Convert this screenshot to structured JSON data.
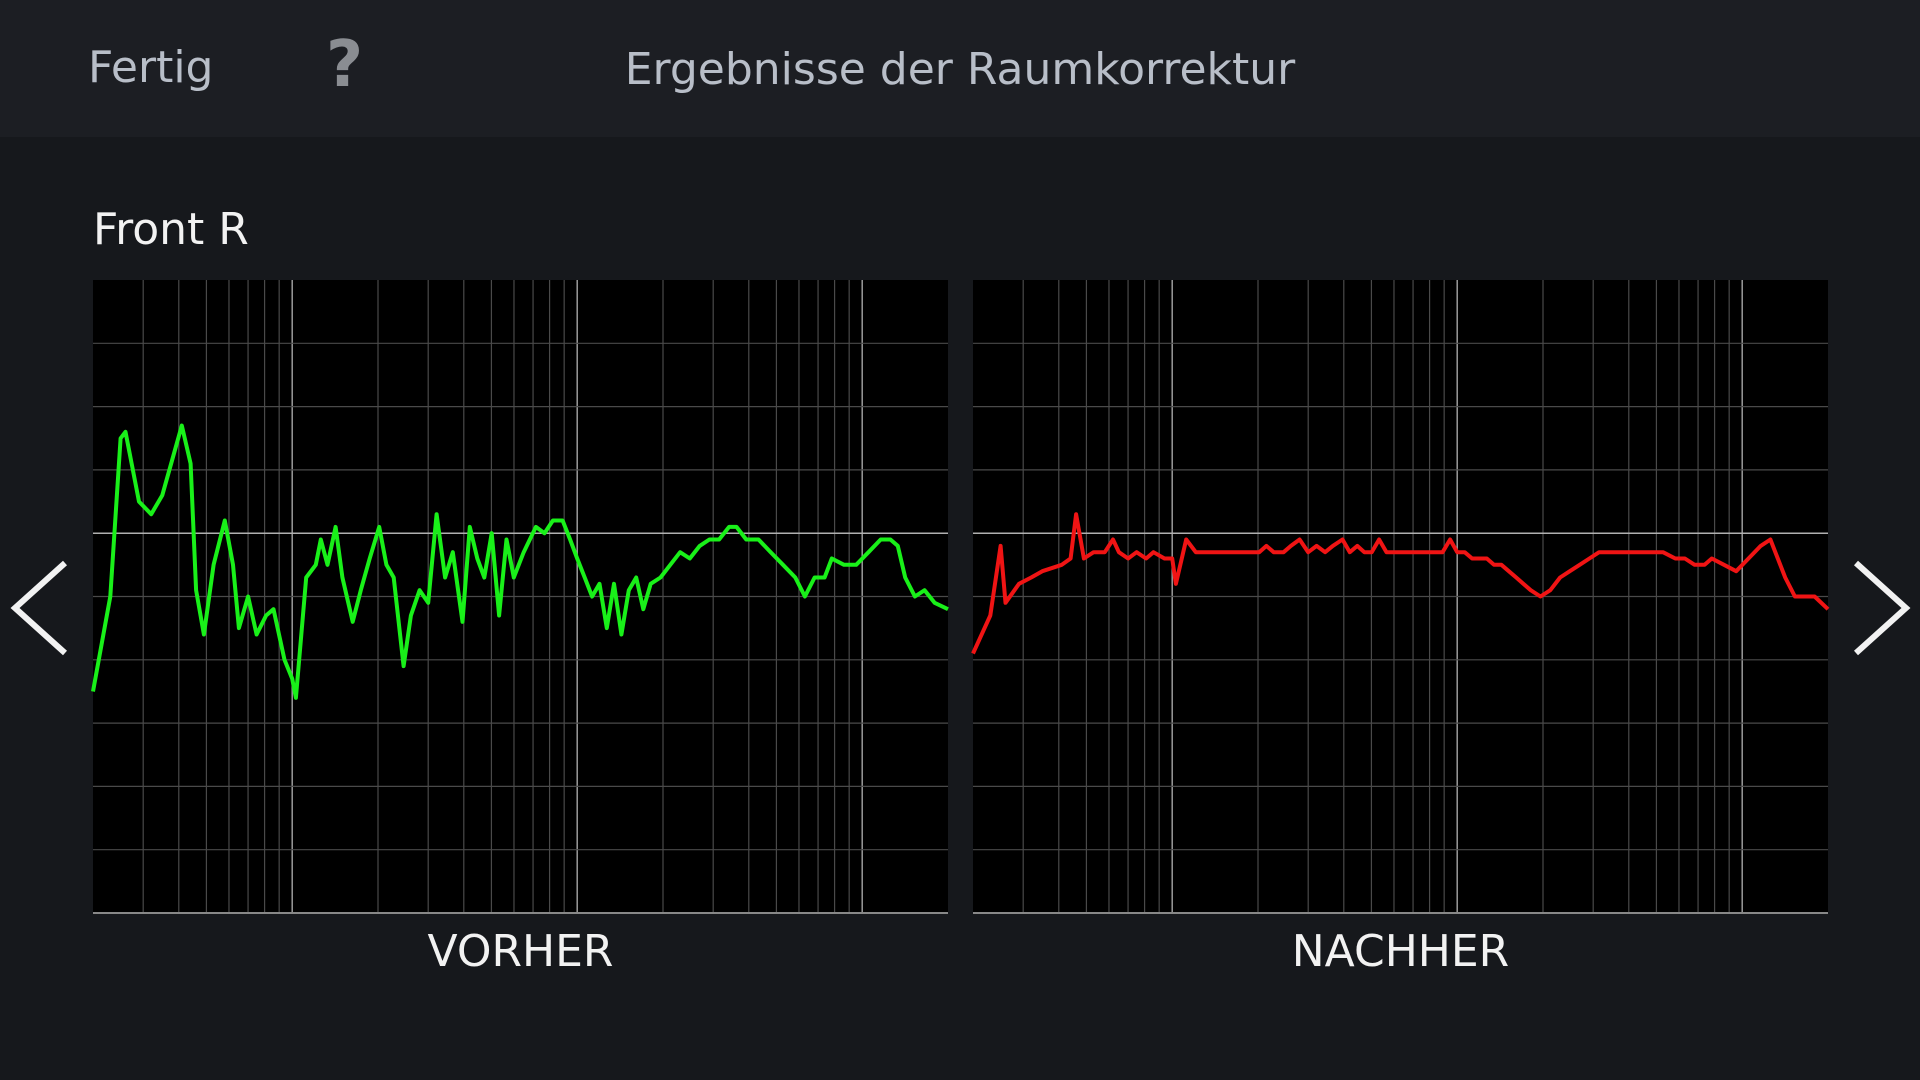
{
  "header": {
    "done": "Fertig",
    "help": "?",
    "title": "Ergebnisse der Raumkorrektur"
  },
  "speaker": "Front R",
  "chart_data": [
    {
      "type": "line",
      "title": "VORHER",
      "xscale": "log",
      "grid": true,
      "xlim": [
        20,
        20000
      ],
      "ylim": [
        -6,
        4
      ],
      "xticks": [
        30,
        40,
        50,
        60,
        70,
        80,
        90,
        100,
        200,
        300,
        400,
        500,
        600,
        700,
        800,
        900,
        1000,
        2000,
        3000,
        4000,
        5000,
        6000,
        7000,
        8000,
        9000,
        10000
      ],
      "yticks": [
        -5,
        -4,
        -3,
        -2,
        -1,
        0,
        1,
        2,
        3
      ],
      "x": [
        20,
        23,
        25,
        26,
        29,
        32,
        35,
        41,
        44,
        46,
        49,
        53,
        58,
        62,
        65,
        70,
        75,
        81,
        86,
        94,
        100,
        103,
        112,
        121,
        126,
        133,
        142,
        150,
        163,
        174,
        187,
        202,
        214,
        227,
        246,
        261,
        280,
        300,
        321,
        344,
        366,
        396,
        420,
        446,
        472,
        501,
        532,
        565,
        599,
        649,
        716,
        768,
        822,
        889,
        944,
        1000,
        1062,
        1128,
        1197,
        1270,
        1346,
        1429,
        1517,
        1610,
        1706,
        1811,
        1960,
        2122,
        2296,
        2484,
        2691,
        2910,
        3148,
        3412,
        3622,
        3918,
        4326,
        4776,
        5272,
        5822,
        6296,
        6808,
        7378,
        7822,
        8630,
        9528,
        10520,
        11614,
        12562,
        13336,
        14158,
        15312,
        16558,
        17948,
        20000
      ],
      "series": [
        {
          "color": "#19f019",
          "values": [
            -2.5,
            -1.0,
            1.5,
            1.6,
            0.5,
            0.3,
            0.6,
            1.7,
            1.1,
            -0.9,
            -1.6,
            -0.5,
            0.2,
            -0.5,
            -1.5,
            -1.0,
            -1.6,
            -1.3,
            -1.2,
            -2.0,
            -2.3,
            -2.6,
            -0.7,
            -0.5,
            -0.1,
            -0.5,
            0.1,
            -0.7,
            -1.4,
            -0.9,
            -0.4,
            0.1,
            -0.5,
            -0.7,
            -2.1,
            -1.3,
            -0.9,
            -1.1,
            0.3,
            -0.7,
            -0.3,
            -1.4,
            0.1,
            -0.4,
            -0.7,
            0,
            -1.3,
            -0.1,
            -0.7,
            -0.3,
            0.1,
            0,
            0.2,
            0.2,
            -0.1,
            -0.4,
            -0.7,
            -1.0,
            -0.8,
            -1.5,
            -0.8,
            -1.6,
            -0.9,
            -0.7,
            -1.2,
            -0.8,
            -0.7,
            -0.5,
            -0.3,
            -0.4,
            -0.2,
            -0.1,
            -0.1,
            0.1,
            0.1,
            -0.1,
            -0.1,
            -0.3,
            -0.5,
            -0.7,
            -1.0,
            -0.7,
            -0.7,
            -0.4,
            -0.5,
            -0.5,
            -0.3,
            -0.1,
            -0.1,
            -0.2,
            -0.7,
            -1.0,
            -0.9,
            -1.1,
            -1.2
          ]
        }
      ]
    },
    {
      "type": "line",
      "title": "NACHHER",
      "xscale": "log",
      "grid": true,
      "xlim": [
        20,
        20000
      ],
      "ylim": [
        -6,
        4
      ],
      "xticks": [
        30,
        40,
        50,
        60,
        70,
        80,
        90,
        100,
        200,
        300,
        400,
        500,
        600,
        700,
        800,
        900,
        1000,
        2000,
        3000,
        4000,
        5000,
        6000,
        7000,
        8000,
        9000,
        10000
      ],
      "yticks": [
        -5,
        -4,
        -3,
        -2,
        -1,
        0,
        1,
        2,
        3
      ],
      "x": [
        20,
        23,
        25,
        26,
        29,
        32,
        35,
        41,
        44,
        46,
        49,
        53,
        58,
        62,
        65,
        70,
        75,
        81,
        86,
        94,
        100,
        103,
        112,
        121,
        126,
        133,
        142,
        150,
        163,
        174,
        187,
        202,
        214,
        227,
        246,
        261,
        280,
        300,
        321,
        344,
        366,
        396,
        420,
        446,
        472,
        501,
        532,
        565,
        599,
        649,
        716,
        768,
        822,
        889,
        944,
        1000,
        1062,
        1128,
        1197,
        1270,
        1346,
        1429,
        1517,
        1610,
        1706,
        1811,
        1960,
        2122,
        2296,
        2484,
        2691,
        2910,
        3148,
        3412,
        3622,
        3918,
        4326,
        4776,
        5272,
        5822,
        6296,
        6808,
        7378,
        7822,
        8630,
        9528,
        10520,
        11614,
        12562,
        13336,
        14158,
        15312,
        16558,
        17948,
        20000
      ],
      "series": [
        {
          "color": "#f01414",
          "values": [
            -1.9,
            -1.3,
            -0.2,
            -1.1,
            -0.8,
            -0.7,
            -0.6,
            -0.5,
            -0.4,
            0.3,
            -0.4,
            -0.3,
            -0.3,
            -0.1,
            -0.3,
            -0.4,
            -0.3,
            -0.4,
            -0.3,
            -0.4,
            -0.4,
            -0.8,
            -0.1,
            -0.3,
            -0.3,
            -0.3,
            -0.3,
            -0.3,
            -0.3,
            -0.3,
            -0.3,
            -0.3,
            -0.2,
            -0.3,
            -0.3,
            -0.2,
            -0.1,
            -0.3,
            -0.2,
            -0.3,
            -0.2,
            -0.1,
            -0.3,
            -0.2,
            -0.3,
            -0.3,
            -0.1,
            -0.3,
            -0.3,
            -0.3,
            -0.3,
            -0.3,
            -0.3,
            -0.3,
            -0.1,
            -0.3,
            -0.3,
            -0.4,
            -0.4,
            -0.4,
            -0.5,
            -0.5,
            -0.6,
            -0.7,
            -0.8,
            -0.9,
            -1.0,
            -0.9,
            -0.7,
            -0.6,
            -0.5,
            -0.4,
            -0.3,
            -0.3,
            -0.3,
            -0.3,
            -0.3,
            -0.3,
            -0.3,
            -0.4,
            -0.4,
            -0.5,
            -0.5,
            -0.4,
            -0.5,
            -0.6,
            -0.4,
            -0.2,
            -0.1,
            -0.4,
            -0.7,
            -1.0,
            -1.0,
            -1.0,
            -1.2
          ]
        }
      ]
    }
  ]
}
